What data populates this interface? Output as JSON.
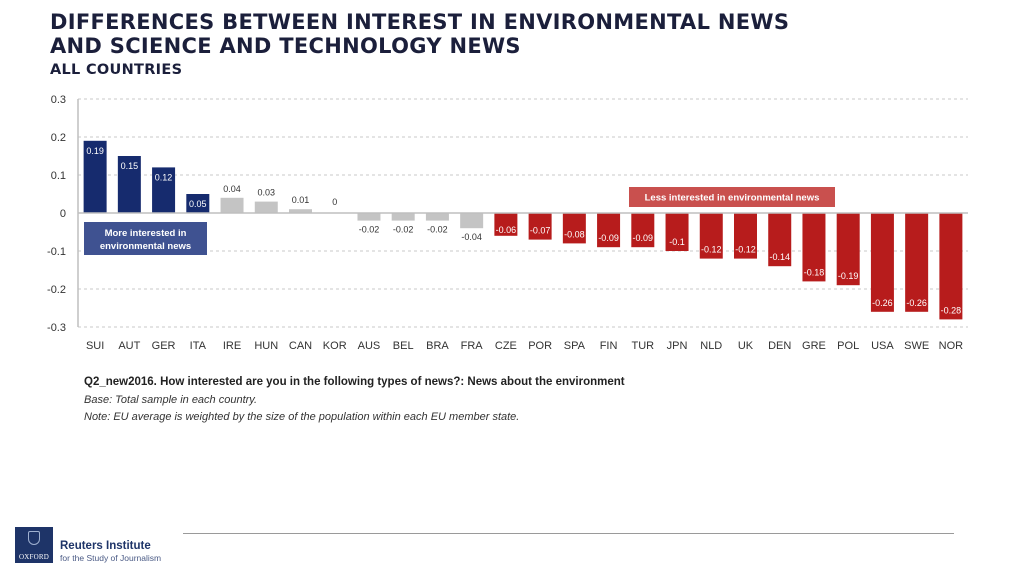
{
  "header": {
    "title_line1": "DIFFERENCES BETWEEN INTEREST IN ENVIRONMENTAL NEWS",
    "title_line2": "AND SCIENCE AND TECHNOLOGY NEWS",
    "subtitle": "ALL COUNTRIES"
  },
  "chart_data": {
    "type": "bar",
    "title": "DIFFERENCES BETWEEN INTEREST IN ENVIRONMENTAL NEWS AND SCIENCE AND TECHNOLOGY NEWS",
    "subtitle": "ALL COUNTRIES",
    "xlabel": "",
    "ylabel": "",
    "ylim": [
      -0.3,
      0.3
    ],
    "yticks": [
      0.3,
      0.2,
      0.1,
      0,
      -0.1,
      -0.2,
      -0.3
    ],
    "ytick_labels": [
      "0.3",
      "0.2",
      "0.1",
      "0",
      "-0.1",
      "-0.2",
      "-0.3"
    ],
    "grid": true,
    "categories": [
      "SUI",
      "AUT",
      "GER",
      "ITA",
      "IRE",
      "HUN",
      "CAN",
      "KOR",
      "AUS",
      "BEL",
      "BRA",
      "FRA",
      "CZE",
      "POR",
      "SPA",
      "FIN",
      "TUR",
      "JPN",
      "NLD",
      "UK",
      "DEN",
      "GRE",
      "POL",
      "USA",
      "SWE",
      "NOR"
    ],
    "values": [
      0.19,
      0.15,
      0.12,
      0.05,
      0.04,
      0.03,
      0.01,
      0,
      -0.02,
      -0.02,
      -0.02,
      -0.04,
      -0.06,
      -0.07,
      -0.08,
      -0.09,
      -0.09,
      -0.1,
      -0.12,
      -0.12,
      -0.14,
      -0.18,
      -0.19,
      -0.26,
      -0.26,
      -0.28
    ],
    "value_labels": [
      "0.19",
      "0.15",
      "0.12",
      "0.05",
      "0.04",
      "0.03",
      "0.01",
      "0",
      "-0.02",
      "-0.02",
      "-0.02",
      "-0.04",
      "-0.06",
      "-0.07",
      "-0.08",
      "-0.09",
      "-0.09",
      "-0.1",
      "-0.12",
      "-0.12",
      "-0.14",
      "-0.18",
      "-0.19",
      "-0.26",
      "-0.26",
      "-0.28"
    ],
    "groups": [
      "more",
      "more",
      "more",
      "more",
      "neutral",
      "neutral",
      "neutral",
      "neutral",
      "neutral",
      "neutral",
      "neutral",
      "neutral",
      "less",
      "less",
      "less",
      "less",
      "less",
      "less",
      "less",
      "less",
      "less",
      "less",
      "less",
      "less",
      "less",
      "less"
    ],
    "colors": {
      "more": "#162b6e",
      "neutral": "#c4c4c4",
      "less": "#b71c1c",
      "grid": "#c8c8c8",
      "axis": "#bfbfbf"
    },
    "annotations": [
      {
        "text_line1": "More interested in",
        "text_line2": "environmental news",
        "color": "#3f5291"
      },
      {
        "text": "Less interested in environmental news",
        "color": "#c9504e"
      }
    ]
  },
  "footnotes": {
    "question": "Q2_new2016. How interested are you in the following types of news?: News about the environment",
    "base": "Base: Total sample in each country.",
    "note": "Note: EU average is weighted by the size of the population within each EU member state."
  },
  "footer": {
    "logo_text": "OXFORD",
    "org_name": "Reuters Institute",
    "org_sub": "for the Study of Journalism"
  }
}
